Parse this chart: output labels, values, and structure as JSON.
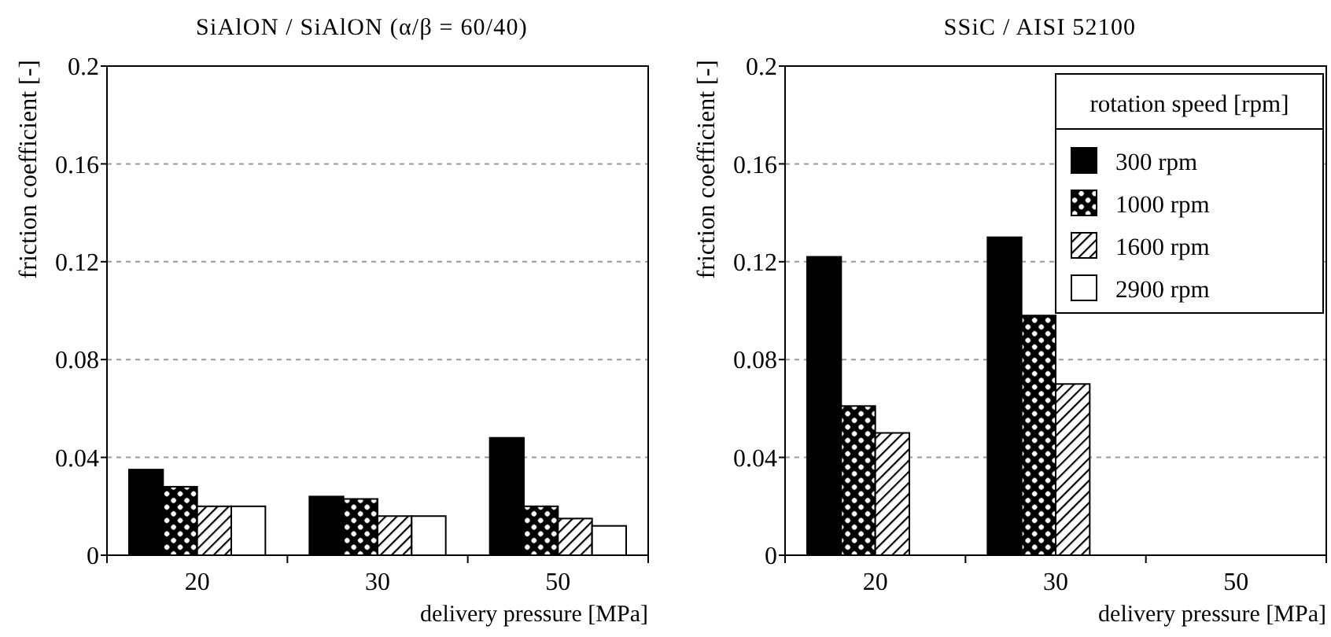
{
  "chart_data": [
    {
      "type": "bar",
      "title": "SiAlON / SiAlON (α/β = 60/40)",
      "xlabel": "delivery pressure [MPa]",
      "ylabel": "friction coefficient [-]",
      "categories": [
        "20",
        "30",
        "50"
      ],
      "series": [
        {
          "color": "#000000",
          "values": [
            0.035,
            0.024,
            0.048
          ]
        },
        {
          "color": "#000000",
          "values": [
            0.028,
            0.023,
            0.02
          ]
        },
        {
          "color": "#000000",
          "values": [
            0.02,
            0.016,
            0.015
          ]
        },
        {
          "color": "#ffffff",
          "values": [
            0.02,
            0.016,
            0.012
          ]
        }
      ],
      "ylim": [
        0,
        0.2
      ],
      "yticks": [
        0,
        0.04,
        0.08,
        0.12,
        0.16,
        0.2
      ],
      "grid": "y",
      "legend": false
    },
    {
      "type": "bar",
      "title": "SSiC / AISI 52100",
      "xlabel": "delivery pressure [MPa]",
      "ylabel": "friction coefficient [-]",
      "categories": [
        "20",
        "30",
        "50"
      ],
      "series": [
        {
          "name": "300 rpm",
          "color": "#000000",
          "values": [
            0.122,
            0.13,
            null
          ]
        },
        {
          "name": "1000 rpm",
          "color": "#000000",
          "values": [
            0.061,
            0.098,
            null
          ]
        },
        {
          "name": "1600 rpm",
          "color": "#000000",
          "values": [
            0.05,
            0.07,
            null
          ]
        },
        {
          "name": "2900 rpm",
          "color": "#ffffff",
          "values": [
            null,
            null,
            null
          ]
        }
      ],
      "ylim": [
        0,
        0.2
      ],
      "yticks": [
        0,
        0.04,
        0.08,
        0.12,
        0.16,
        0.2
      ],
      "grid": "y",
      "legend": "top right",
      "legend_title": "rotation speed [rpm]"
    }
  ]
}
